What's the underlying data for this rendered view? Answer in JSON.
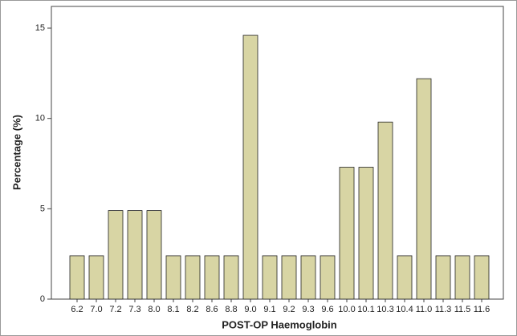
{
  "chart_data": {
    "type": "bar",
    "x_label": "POST-OP Haemoglobin",
    "y_label": "Percentage (%)",
    "categories": [
      "6.2",
      "7.0",
      "7.2",
      "7.3",
      "8.0",
      "8.1",
      "8.2",
      "8.6",
      "8.8",
      "9.0",
      "9.1",
      "9.2",
      "9.3",
      "9.6",
      "10.0",
      "10.1",
      "10.3",
      "10.4",
      "11.0",
      "11.3",
      "11.5",
      "11.6"
    ],
    "values": [
      2.4,
      2.4,
      4.9,
      4.9,
      4.9,
      2.4,
      2.4,
      2.4,
      2.4,
      14.6,
      2.4,
      2.4,
      2.4,
      2.4,
      7.3,
      7.3,
      9.8,
      2.4,
      12.2,
      2.4,
      2.4,
      2.4
    ],
    "color": "#d8d5a4",
    "ylim": [
      0,
      16.2
    ],
    "yticks": [
      0,
      5,
      10,
      15
    ]
  }
}
